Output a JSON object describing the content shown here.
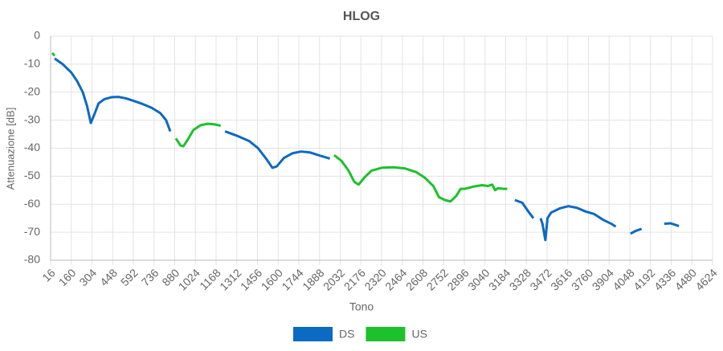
{
  "chart_data": {
    "type": "line",
    "title": "HLOG",
    "x_label": "Tono",
    "y_label": "Attenuazione [dB]",
    "xlim": [
      16,
      4624
    ],
    "xticks": [
      16,
      160,
      304,
      448,
      592,
      736,
      880,
      1024,
      1168,
      1312,
      1456,
      1600,
      1744,
      1888,
      2032,
      2176,
      2320,
      2464,
      2608,
      2752,
      2896,
      3040,
      3184,
      3328,
      3472,
      3616,
      3760,
      3904,
      4048,
      4192,
      4336,
      4480,
      4624
    ],
    "ylim": [
      -80,
      0
    ],
    "yticks": [
      0,
      -10,
      -20,
      -30,
      -40,
      -50,
      -60,
      -70,
      -80
    ],
    "grid": true,
    "series": [
      {
        "name": "DS",
        "color": "#0b6ac2",
        "x": [
          44,
          100,
          160,
          200,
          240,
          270,
          296,
          320,
          350,
          390,
          440,
          490,
          540,
          600,
          660,
          720,
          780,
          820,
          849,
          1000,
          1230,
          1310,
          1400,
          1460,
          1520,
          1560,
          1590,
          1640,
          1700,
          1760,
          1820,
          1880,
          1960,
          2500,
          3248,
          3300,
          3340,
          3377,
          3400,
          3427,
          3440,
          3460,
          3475,
          3500,
          3560,
          3620,
          3680,
          3740,
          3800,
          3860,
          3920,
          3950,
          4000,
          4053,
          4090,
          4130,
          4200,
          4288,
          4330,
          4360,
          4390
        ],
        "values": [
          -8,
          -10,
          -13,
          -16,
          -20,
          -25,
          -31,
          -28,
          -24,
          -22.5,
          -21.8,
          -21.7,
          -22.2,
          -23.2,
          -24.3,
          -25.6,
          -27.5,
          -30,
          -34,
          null,
          -34,
          -35.5,
          -37.5,
          -40,
          -44,
          -47,
          -46.5,
          -43.5,
          -41.8,
          -41.2,
          -41.5,
          -42.5,
          -43.7,
          null,
          -58.5,
          -59.5,
          -62.5,
          -65,
          null,
          -65,
          -67,
          -72.8,
          -65,
          -63,
          -61.5,
          -60.7,
          -61.3,
          -62.6,
          -63.5,
          -65.5,
          -67,
          -68,
          null,
          -70.5,
          -69.5,
          -68.8,
          null,
          -67,
          -66.8,
          -67.3,
          -67.8
        ]
      },
      {
        "name": "US",
        "color": "#1cc12c",
        "x": [
          27,
          44,
          400,
          888,
          920,
          940,
          970,
          1010,
          1060,
          1110,
          1160,
          1200,
          1600,
          1990,
          2040,
          2090,
          2130,
          2160,
          2200,
          2250,
          2320,
          2400,
          2480,
          2560,
          2620,
          2680,
          2720,
          2760,
          2800,
          2840,
          2870,
          2900,
          2960,
          3020,
          3060,
          3090,
          3110,
          3130,
          3170,
          3195
        ],
        "values": [
          -6,
          -7,
          null,
          -36.5,
          -39,
          -39.3,
          -37,
          -33.5,
          -31.8,
          -31.3,
          -31.5,
          -32,
          null,
          -42.5,
          -44.5,
          -48,
          -52,
          -53,
          -50.5,
          -48,
          -47,
          -46.8,
          -47.2,
          -48.5,
          -50.5,
          -53.5,
          -57.5,
          -58.5,
          -59,
          -57,
          -54.5,
          -54.5,
          -53.7,
          -53.2,
          -53.5,
          -53,
          -55,
          -54.3,
          -54.5,
          -54.5
        ]
      }
    ]
  }
}
